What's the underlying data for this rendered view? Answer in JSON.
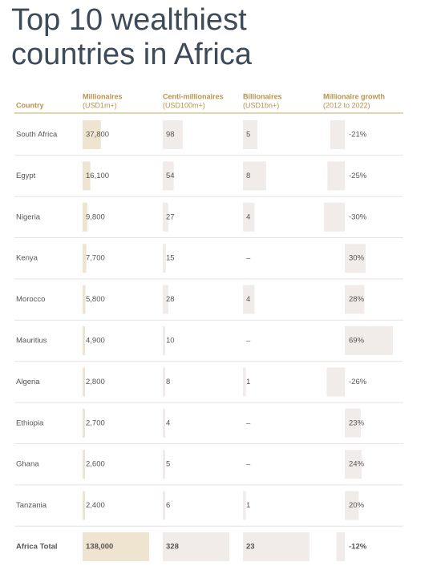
{
  "title": "Top 10 wealthiest countries in Africa",
  "table": {
    "columns": [
      {
        "name": "Country"
      },
      {
        "name": "Millionaires",
        "unit": "(USD1m+)"
      },
      {
        "name": "Centi-millionaires",
        "unit": "(USD100m+)"
      },
      {
        "name": "Billionaires",
        "unit": "(USD1bn+)"
      },
      {
        "name": "Millionaire growth",
        "unit": "(2012 to 2022)"
      }
    ],
    "rows": [
      {
        "country": "South Africa",
        "values": [
          {
            "value": 37800,
            "label": "37,800"
          },
          98,
          5,
          {
            "value": -21,
            "label": "-21%"
          }
        ]
      },
      {
        "country": "Egypt",
        "values": [
          {
            "value": 16100,
            "label": "16,100"
          },
          54,
          8,
          {
            "value": -25,
            "label": "-25%"
          }
        ]
      },
      {
        "country": "Nigeria",
        "values": [
          {
            "value": 9800,
            "label": "9,800"
          },
          27,
          4,
          {
            "value": -30,
            "label": "-30%"
          }
        ]
      },
      {
        "country": "Kenya",
        "values": [
          {
            "value": 7700,
            "label": "7,700"
          },
          15,
          {
            "value": null,
            "label": "–"
          },
          {
            "value": 30,
            "label": "30%"
          }
        ]
      },
      {
        "country": "Morocco",
        "values": [
          {
            "value": 5800,
            "label": "5,800"
          },
          28,
          4,
          {
            "value": 28,
            "label": "28%"
          }
        ]
      },
      {
        "country": "Mauritius",
        "values": [
          {
            "value": 4900,
            "label": "4,900"
          },
          10,
          {
            "value": null,
            "label": "–"
          },
          {
            "value": 69,
            "label": "69%"
          }
        ]
      },
      {
        "country": "Algeria",
        "values": [
          {
            "value": 2800,
            "label": "2,800"
          },
          8,
          1,
          {
            "value": -26,
            "label": "-26%"
          }
        ]
      },
      {
        "country": "Ethiopia",
        "values": [
          {
            "value": 2700,
            "label": "2,700"
          },
          4,
          {
            "value": null,
            "label": "–"
          },
          {
            "value": 23,
            "label": "23%"
          }
        ]
      },
      {
        "country": "Ghana",
        "values": [
          {
            "value": 2600,
            "label": "2,600"
          },
          5,
          {
            "value": null,
            "label": "–"
          },
          {
            "value": 24,
            "label": "24%"
          }
        ]
      },
      {
        "country": "Tanzania",
        "values": [
          {
            "value": 2400,
            "label": "2,400"
          },
          6,
          1,
          {
            "value": 20,
            "label": "20%"
          }
        ]
      }
    ],
    "total": {
      "country": "Africa Total",
      "values": [
        {
          "value": 138000,
          "label": "138,000"
        },
        328,
        23,
        {
          "value": -12,
          "label": "-12%"
        }
      ]
    }
  }
}
